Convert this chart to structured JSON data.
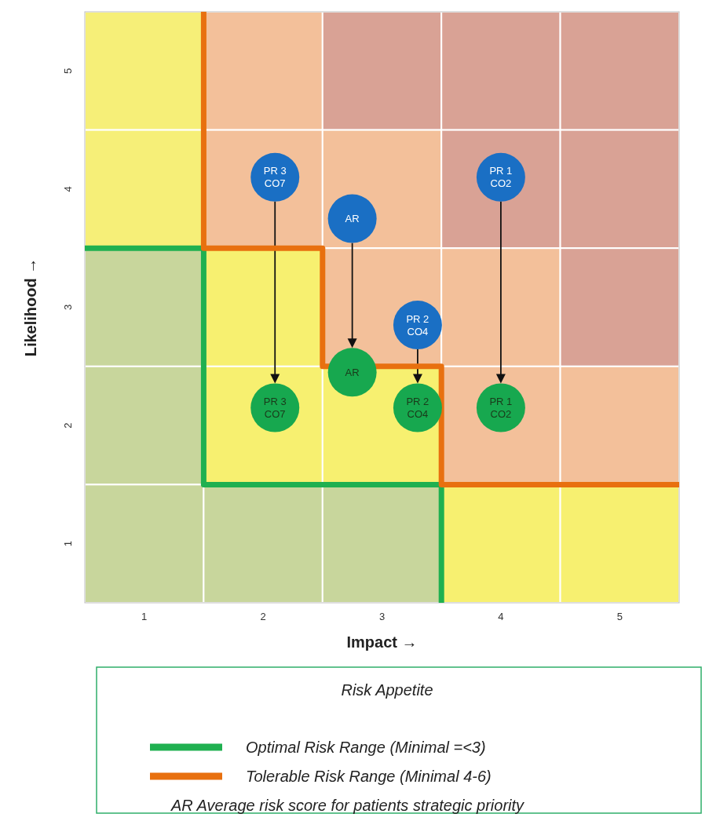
{
  "chart_data": {
    "type": "scatter",
    "xlabel": "Impact →",
    "ylabel": "Likelihood →",
    "xlim": [
      0.5,
      5.5
    ],
    "xticks": [
      1,
      2,
      3,
      4,
      5
    ],
    "ylim": [
      0.5,
      5.5
    ],
    "yticks": [
      1,
      2,
      3,
      4,
      5
    ],
    "grid": false,
    "legend": "bottom",
    "legend_title": "Risk Appetite",
    "annotations": [
      "AR Average risk score for patients strategic priority"
    ],
    "series": [
      {
        "type": "bar",
        "x": [
          1,
          2,
          3,
          4,
          5
        ],
        "base": [
          4.5,
          4.5,
          4.5,
          4.5,
          4.5
        ],
        "values": [
          1,
          1,
          1,
          1,
          1
        ],
        "colors": [
          "#f6ef78",
          "#f3c09a",
          "#d9a295",
          "#d9a295",
          "#d9a295"
        ]
      },
      {
        "type": "bar",
        "x": [
          1,
          2,
          3,
          4,
          5
        ],
        "base": [
          3.5,
          3.5,
          3.5,
          3.5,
          3.5
        ],
        "values": [
          1,
          1,
          1,
          1,
          1
        ],
        "colors": [
          "#f6ef78",
          "#f3c09a",
          "#f3c09a",
          "#d9a295",
          "#d9a295"
        ]
      },
      {
        "type": "bar",
        "x": [
          1,
          2,
          3,
          4,
          5
        ],
        "base": [
          2.5,
          2.5,
          2.5,
          2.5,
          2.5
        ],
        "values": [
          1,
          1,
          1,
          1,
          1
        ],
        "colors": [
          "#c8d69c",
          "#f7f070",
          "#f3c09a",
          "#f3c09a",
          "#d9a295"
        ]
      },
      {
        "type": "bar",
        "x": [
          1,
          2,
          3,
          4,
          5
        ],
        "base": [
          1.5,
          1.5,
          1.5,
          1.5,
          1.5
        ],
        "values": [
          1,
          1,
          1,
          1,
          1
        ],
        "colors": [
          "#c8d69c",
          "#f7f070",
          "#f7f070",
          "#f3c09a",
          "#f3c09a"
        ]
      },
      {
        "type": "bar",
        "x": [
          1,
          2,
          3,
          4,
          5
        ],
        "base": [
          0.5,
          0.5,
          0.5,
          0.5,
          0.5
        ],
        "values": [
          1,
          1,
          1,
          1,
          1
        ],
        "colors": [
          "#c8d69c",
          "#c8d69c",
          "#c8d69c",
          "#f7f070",
          "#f7f070"
        ]
      },
      {
        "type": "line",
        "name": "Optimal Risk Range (Minimal  =<3)",
        "color": "#1fb050",
        "x": [
          0.5,
          1.5,
          1.5,
          3.5,
          3.5
        ],
        "values": [
          3.5,
          3.5,
          1.5,
          1.5,
          0.5
        ]
      },
      {
        "type": "line",
        "name": "Tolerable Risk Range (Minimal 4-6)",
        "color": "#e8700f",
        "x": [
          1.5,
          1.5,
          2.5,
          2.5,
          3.5,
          3.5,
          5.5
        ],
        "values": [
          5.5,
          3.5,
          3.5,
          2.5,
          2.5,
          1.5,
          1.5
        ]
      },
      {
        "type": "scatter",
        "marker": "circle",
        "color": "#1a6fc4",
        "x": [
          2.1,
          2.75,
          4.0,
          3.3
        ],
        "values": [
          4.1,
          3.75,
          4.1,
          2.85
        ],
        "value_labels": [
          "PR 3\nCO7",
          "AR",
          "PR 1\nCO2",
          "PR 2\nCO4"
        ]
      },
      {
        "type": "scatter",
        "marker": "circle",
        "color": "#17a84f",
        "x": [
          2.1,
          2.75,
          4.0,
          3.3
        ],
        "values": [
          2.15,
          2.45,
          2.15,
          2.15
        ],
        "value_labels": [
          "PR 3\nCO7",
          "AR",
          "PR 1\nCO2",
          "PR 2\nCO4"
        ]
      }
    ]
  }
}
